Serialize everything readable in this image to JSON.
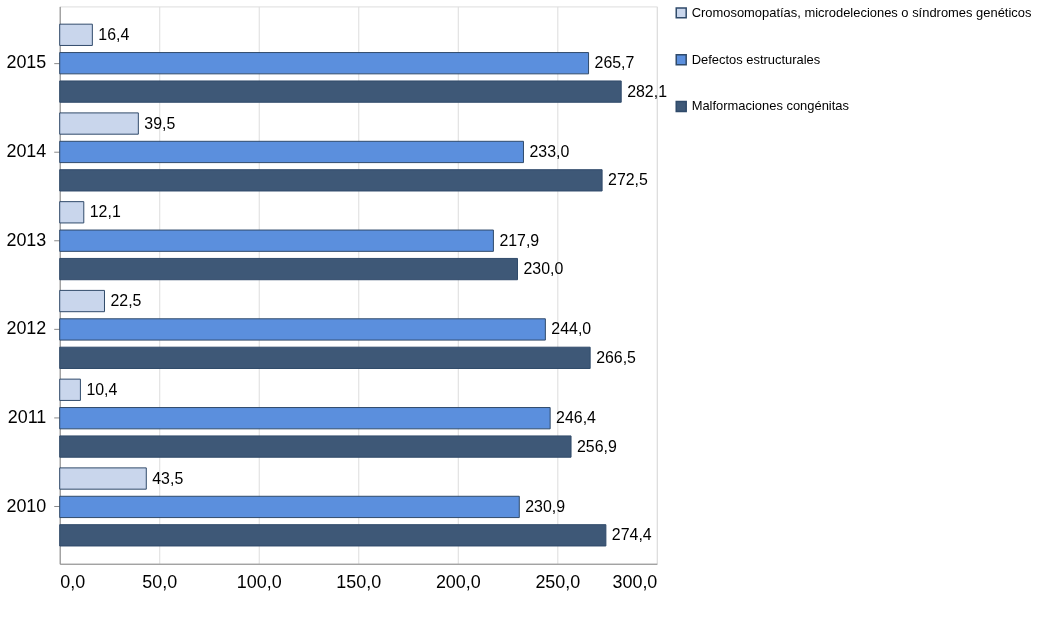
{
  "chart_data": {
    "type": "bar",
    "orientation": "horizontal",
    "categories": [
      "2015",
      "2014",
      "2013",
      "2012",
      "2011",
      "2010"
    ],
    "series": [
      {
        "name": "Cromosomopatías, microdeleciones o síndromes genéticos",
        "color": "#c9d6ec",
        "values": [
          16.4,
          39.5,
          12.1,
          22.5,
          10.4,
          43.5
        ],
        "value_labels": [
          "16,4",
          "39,5",
          "12,1",
          "22,5",
          "10,4",
          "43,5"
        ]
      },
      {
        "name": "Defectos estructurales",
        "color": "#5b8fdd",
        "values": [
          265.7,
          233.0,
          217.9,
          244.0,
          246.4,
          230.9
        ],
        "value_labels": [
          "265,7",
          "233,0",
          "217,9",
          "244,0",
          "246,4",
          "230,9"
        ]
      },
      {
        "name": "Malformaciones congénitas",
        "color": "#3e5877",
        "values": [
          282.1,
          272.5,
          230.0,
          266.5,
          256.9,
          274.4
        ],
        "value_labels": [
          "282,1",
          "272,5",
          "230,0",
          "266,5",
          "256,9",
          "274,4"
        ]
      }
    ],
    "xlim": [
      0,
      300
    ],
    "xticks": [
      {
        "value": 0,
        "label": "0,0"
      },
      {
        "value": 50,
        "label": "50,0"
      },
      {
        "value": 100,
        "label": "100,0"
      },
      {
        "value": 150,
        "label": "150,0"
      },
      {
        "value": 200,
        "label": "200,0"
      },
      {
        "value": 250,
        "label": "250,0"
      },
      {
        "value": 300,
        "label": "300,0"
      }
    ],
    "grid": "x",
    "legend": "right"
  }
}
